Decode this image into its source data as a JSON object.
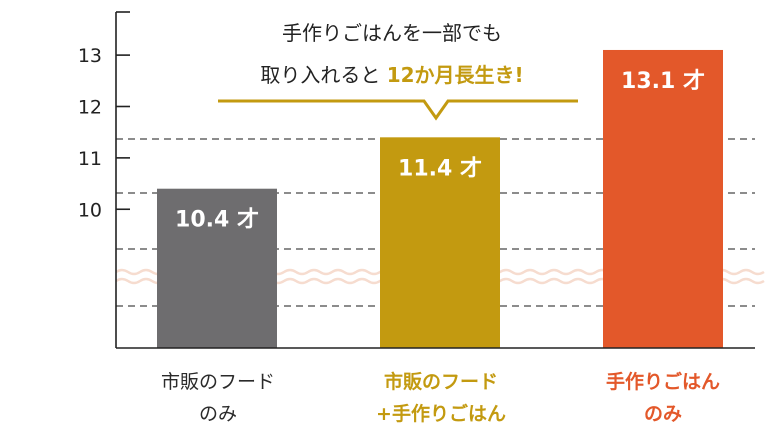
{
  "chart_data": {
    "type": "bar",
    "categories": [
      "市販のフード のみ",
      "市販のフード +手作りごはん",
      "手作りごはん のみ"
    ],
    "category_lines": [
      [
        "市販のフード",
        "のみ"
      ],
      [
        "市販のフード",
        "+手作りごはん"
      ],
      [
        "手作りごはん",
        "のみ"
      ]
    ],
    "values": [
      10.4,
      11.4,
      13.1
    ],
    "value_labels": [
      "10.4 才",
      "11.4 才",
      "13.1 才"
    ],
    "bar_colors": [
      "#6e6d6f",
      "#c39a10",
      "#e3582a"
    ],
    "category_label_colors": [
      "#2a2a2a",
      "#c39a10",
      "#e3582a"
    ],
    "yticks": [
      "10",
      "11",
      "12",
      "13"
    ],
    "ytick_values": [
      10,
      11,
      12,
      13
    ],
    "ylim": [
      7.3,
      13.8
    ],
    "axis_break": true,
    "grid": "dashed",
    "xlabel": "",
    "ylabel": "",
    "annotation": {
      "line1": "手作りごはんを一部でも",
      "line2_prefix": "取り入れると",
      "line2_highlight": "12か月長生き!",
      "highlight_color": "#c39a10"
    }
  }
}
